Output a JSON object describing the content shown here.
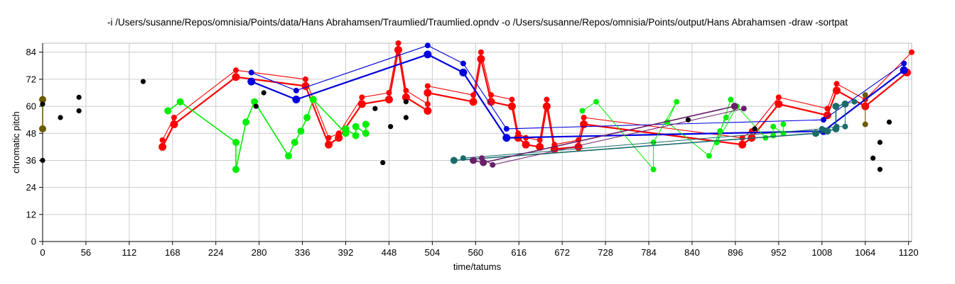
{
  "chart_data": {
    "type": "scatter",
    "title": "-i /Users/susanne/Repos/omnisia/Points/data/Hans Abrahamsen/Traumlied/Traumlied.opndv -o /Users/susanne/Repos/omnisia/Points/output/Hans Abrahamsen -draw -sortpat",
    "xlabel": "time/tatums",
    "ylabel": "chromatic pitch",
    "xlim": [
      0,
      1124
    ],
    "ylim": [
      0,
      88
    ],
    "xticks": [
      0,
      56,
      112,
      168,
      224,
      280,
      336,
      392,
      448,
      504,
      560,
      616,
      672,
      728,
      784,
      840,
      896,
      952,
      1008,
      1064,
      1120
    ],
    "yticks": [
      0,
      12,
      24,
      36,
      48,
      60,
      72,
      84
    ],
    "grid": true,
    "colors": {
      "red": "#ff0000",
      "blue": "#0000dd",
      "green": "#00ee00",
      "teal": "#1a6b6b",
      "purple": "#6a1f6a",
      "olive": "#6b5a00",
      "black": "#000000"
    },
    "patterns": [
      {
        "color": "#ff0000",
        "width": 2.2,
        "r": 5.5,
        "points": [
          [
            155,
            42
          ],
          [
            170,
            52
          ],
          [
            250,
            73
          ],
          [
            340,
            69
          ],
          [
            370,
            43
          ],
          [
            383,
            46
          ],
          [
            413,
            61
          ],
          [
            448,
            63
          ],
          [
            460,
            85
          ],
          [
            470,
            64
          ],
          [
            498,
            58
          ],
          [
            498,
            66
          ],
          [
            557,
            62
          ],
          [
            567,
            81
          ],
          [
            580,
            62
          ],
          [
            607,
            60
          ],
          [
            615,
            46
          ],
          [
            625,
            43
          ],
          [
            643,
            42
          ],
          [
            652,
            60
          ],
          [
            662,
            41
          ],
          [
            693,
            42
          ],
          [
            700,
            52
          ],
          [
            905,
            43
          ],
          [
            917,
            46
          ],
          [
            952,
            61
          ],
          [
            1015,
            56
          ],
          [
            1027,
            67
          ],
          [
            1064,
            60
          ],
          [
            1118,
            75
          ]
        ]
      },
      {
        "color": "#ff0000",
        "width": 1.1,
        "r": 4,
        "points": [
          [
            155,
            45
          ],
          [
            170,
            55
          ],
          [
            250,
            76
          ],
          [
            340,
            72
          ],
          [
            370,
            46
          ],
          [
            383,
            48
          ],
          [
            413,
            64
          ],
          [
            448,
            66
          ],
          [
            460,
            88
          ],
          [
            470,
            67
          ],
          [
            498,
            61
          ],
          [
            498,
            69
          ],
          [
            557,
            65
          ],
          [
            567,
            84
          ],
          [
            580,
            65
          ],
          [
            607,
            63
          ],
          [
            615,
            48
          ],
          [
            625,
            46
          ],
          [
            643,
            45
          ],
          [
            652,
            63
          ],
          [
            662,
            43
          ],
          [
            693,
            45
          ],
          [
            700,
            55
          ],
          [
            905,
            46
          ],
          [
            917,
            49
          ],
          [
            952,
            64
          ],
          [
            1015,
            59
          ],
          [
            1027,
            70
          ],
          [
            1064,
            63
          ],
          [
            1124,
            84
          ]
        ]
      },
      {
        "color": "#0000dd",
        "width": 2.2,
        "r": 5.5,
        "points": [
          [
            270,
            71
          ],
          [
            328,
            63
          ],
          [
            498,
            83
          ],
          [
            544,
            75
          ],
          [
            600,
            46
          ],
          [
            1010,
            49
          ],
          [
            1114,
            76
          ]
        ]
      },
      {
        "color": "#0000dd",
        "width": 1.1,
        "r": 4,
        "points": [
          [
            270,
            75
          ],
          [
            328,
            67
          ],
          [
            498,
            87
          ],
          [
            544,
            79
          ],
          [
            600,
            50
          ],
          [
            1010,
            54
          ],
          [
            1114,
            79
          ]
        ]
      },
      {
        "color": "#00ee00",
        "width": 1.6,
        "r": 5,
        "points": [
          [
            162,
            58
          ],
          [
            178,
            62
          ],
          [
            250,
            44
          ],
          [
            250,
            32
          ],
          [
            263,
            53
          ],
          [
            274,
            62
          ],
          [
            318,
            38
          ],
          [
            326,
            44
          ],
          [
            334,
            49
          ],
          [
            342,
            55
          ],
          [
            350,
            63
          ],
          [
            392,
            48
          ],
          [
            392,
            50
          ],
          [
            405,
            47
          ],
          [
            405,
            51
          ],
          [
            418,
            48
          ],
          [
            418,
            52
          ]
        ]
      },
      {
        "color": "#00ee00",
        "width": 1.0,
        "r": 4,
        "points": [
          [
            698,
            58
          ],
          [
            716,
            62
          ],
          [
            790,
            32
          ],
          [
            790,
            44
          ],
          [
            820,
            62
          ],
          [
            808,
            53
          ],
          [
            862,
            38
          ],
          [
            876,
            49
          ],
          [
            884,
            55
          ],
          [
            898,
            60
          ],
          [
            872,
            44
          ],
          [
            890,
            63
          ],
          [
            935,
            46
          ],
          [
            945,
            47
          ],
          [
            945,
            51
          ],
          [
            958,
            48
          ],
          [
            958,
            52
          ]
        ]
      },
      {
        "color": "#1a6b6b",
        "width": 1.6,
        "r": 5,
        "points": [
          [
            532,
            36
          ],
          [
            1000,
            48
          ],
          [
            1015,
            49
          ],
          [
            1026,
            50
          ],
          [
            1026,
            60
          ],
          [
            1038,
            61
          ]
        ]
      },
      {
        "color": "#1a6b6b",
        "width": 1.0,
        "r": 4,
        "points": [
          [
            544,
            37
          ],
          [
            1008,
            50
          ],
          [
            1027,
            51
          ],
          [
            1038,
            51
          ],
          [
            1038,
            61
          ],
          [
            1050,
            62
          ]
        ]
      },
      {
        "color": "#6a1f6a",
        "width": 1.6,
        "r": 5,
        "points": [
          [
            557,
            36
          ],
          [
            570,
            35
          ],
          [
            895,
            60
          ]
        ]
      },
      {
        "color": "#6a1f6a",
        "width": 1.0,
        "r": 4,
        "points": [
          [
            568,
            37
          ],
          [
            582,
            34
          ],
          [
            907,
            59
          ]
        ]
      },
      {
        "color": "#6b5a00",
        "width": 1.6,
        "r": 5,
        "points": [
          [
            0,
            50
          ],
          [
            0,
            63
          ]
        ]
      },
      {
        "color": "#6b5a00",
        "width": 1.0,
        "r": 4,
        "points": [
          [
            1064,
            52
          ],
          [
            1064,
            65
          ]
        ]
      }
    ],
    "points": [
      [
        0,
        36
      ],
      [
        0,
        61
      ],
      [
        23,
        55
      ],
      [
        47,
        58
      ],
      [
        47,
        64
      ],
      [
        130,
        71
      ],
      [
        276,
        60
      ],
      [
        286,
        66
      ],
      [
        440,
        35
      ],
      [
        430,
        59
      ],
      [
        450,
        51
      ],
      [
        470,
        55
      ],
      [
        470,
        62
      ],
      [
        835,
        54
      ],
      [
        921,
        50
      ],
      [
        1074,
        37
      ],
      [
        1083,
        32
      ],
      [
        1083,
        44
      ],
      [
        1095,
        53
      ]
    ]
  }
}
